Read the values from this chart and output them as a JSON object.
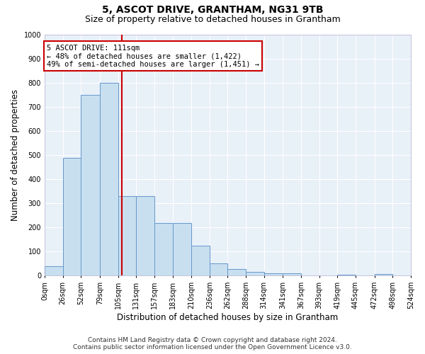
{
  "title": "5, ASCOT DRIVE, GRANTHAM, NG31 9TB",
  "subtitle": "Size of property relative to detached houses in Grantham",
  "xlabel": "Distribution of detached houses by size in Grantham",
  "ylabel": "Number of detached properties",
  "bar_color": "#c8dff0",
  "bar_edge_color": "#6699cc",
  "background_color": "#e8f0f8",
  "grid_color": "#ffffff",
  "vline_value": 111,
  "vline_color": "#cc0000",
  "annotation_text": "5 ASCOT DRIVE: 111sqm\n← 48% of detached houses are smaller (1,422)\n49% of semi-detached houses are larger (1,451) →",
  "annotation_box_color": "#ffffff",
  "annotation_box_edge_color": "#cc0000",
  "footer_line1": "Contains HM Land Registry data © Crown copyright and database right 2024.",
  "footer_line2": "Contains public sector information licensed under the Open Government Licence v3.0.",
  "bin_edges": [
    0,
    26,
    52,
    79,
    105,
    131,
    157,
    183,
    210,
    236,
    262,
    288,
    314,
    341,
    367,
    393,
    419,
    445,
    472,
    498,
    524
  ],
  "bar_heights": [
    40,
    490,
    750,
    800,
    330,
    330,
    220,
    220,
    125,
    50,
    28,
    15,
    10,
    10,
    0,
    0,
    5,
    0,
    8,
    0
  ],
  "ylim": [
    0,
    1000
  ],
  "xlim": [
    0,
    524
  ],
  "yticks": [
    0,
    100,
    200,
    300,
    400,
    500,
    600,
    700,
    800,
    900,
    1000
  ],
  "title_fontsize": 10,
  "subtitle_fontsize": 9,
  "tick_fontsize": 7,
  "label_fontsize": 8.5,
  "footer_fontsize": 6.5
}
